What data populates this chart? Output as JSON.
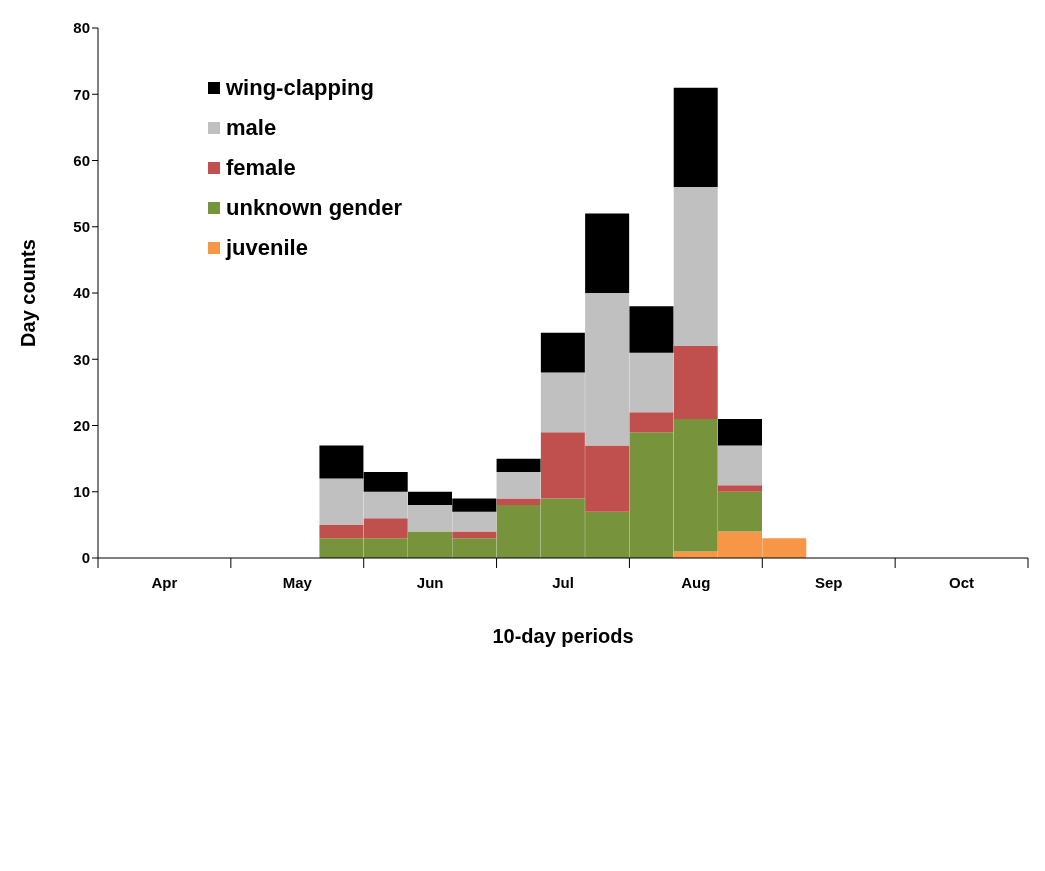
{
  "chart_data": {
    "type": "bar",
    "stacked": true,
    "xlabel": "10-day periods",
    "ylabel": "Day counts",
    "categories": [
      null,
      "Apr",
      null,
      null,
      "May",
      null,
      null,
      "Jun",
      null,
      null,
      "Jul",
      null,
      null,
      "Aug",
      null,
      null,
      "Sep",
      null,
      null,
      "Oct",
      null
    ],
    "series": [
      {
        "name": "juvenile",
        "color": "#f79646",
        "values": [
          null,
          null,
          null,
          null,
          null,
          null,
          null,
          null,
          null,
          null,
          null,
          null,
          null,
          1,
          4,
          3,
          null,
          null,
          null,
          null,
          null
        ]
      },
      {
        "name": "unknown gender",
        "color": "#77933c",
        "values": [
          null,
          null,
          null,
          null,
          null,
          3,
          3,
          4,
          3,
          8,
          9,
          7,
          19,
          20,
          6,
          null,
          null,
          null,
          null,
          null,
          null
        ]
      },
      {
        "name": "female",
        "color": "#c0504d",
        "values": [
          null,
          null,
          null,
          null,
          null,
          2,
          3,
          null,
          1,
          1,
          10,
          10,
          3,
          11,
          1,
          null,
          null,
          null,
          null,
          null,
          null
        ]
      },
      {
        "name": "male",
        "color": "#c0c0c0",
        "values": [
          null,
          null,
          null,
          null,
          null,
          7,
          4,
          4,
          3,
          4,
          9,
          23,
          9,
          24,
          6,
          null,
          null,
          null,
          null,
          null,
          null
        ]
      },
      {
        "name": "wing-clapping",
        "color": "#000000",
        "values": [
          null,
          null,
          null,
          null,
          null,
          5,
          3,
          2,
          2,
          2,
          6,
          12,
          7,
          15,
          4,
          null,
          null,
          null,
          null,
          null,
          null
        ]
      }
    ],
    "ylim": [
      0,
      80
    ],
    "yticks": [
      0,
      10,
      20,
      30,
      40,
      50,
      60,
      70,
      80
    ],
    "grid": false,
    "legend": "top left"
  }
}
